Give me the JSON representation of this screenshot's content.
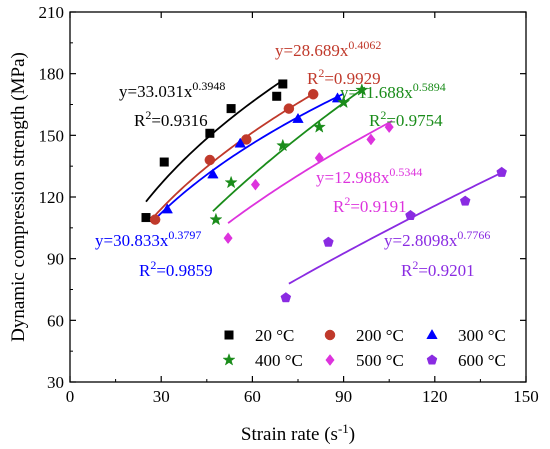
{
  "chart_data": {
    "type": "scatter",
    "xlabel": "Strain rate (s",
    "xlabel_sup": "-1",
    "xlabel_tail": ")",
    "ylabel": "Dynamic compression strength (MPa)",
    "xlim": [
      0,
      150
    ],
    "ylim": [
      30,
      210
    ],
    "xticks": [
      0,
      30,
      60,
      90,
      120,
      150
    ],
    "yticks": [
      30,
      60,
      90,
      120,
      150,
      180,
      210
    ],
    "grid": false,
    "legend_position": "bottom-right",
    "series": [
      {
        "name": "20 °C",
        "color": "#000000",
        "marker": "square",
        "points": [
          [
            25,
            110
          ],
          [
            31,
            137
          ],
          [
            46,
            151
          ],
          [
            53,
            163
          ],
          [
            68,
            169
          ],
          [
            70,
            175
          ]
        ],
        "fit": {
          "a": 33.031,
          "b": 0.3948,
          "range": [
            25,
            70
          ],
          "eq_coef": "y=33.031x",
          "eq_exp": "0.3948",
          "r2_prefix": "R",
          "r2_sup": "2",
          "r2_value": "=0.9316"
        }
      },
      {
        "name": "200 °C",
        "color": "#c0392b",
        "marker": "circle",
        "points": [
          [
            28,
            109
          ],
          [
            46,
            138
          ],
          [
            58,
            148
          ],
          [
            72,
            163
          ],
          [
            80,
            170
          ]
        ],
        "fit": {
          "a": 28.689,
          "b": 0.4062,
          "range": [
            28,
            80
          ],
          "eq_coef": "y=28.689x",
          "eq_exp": "0.4062",
          "r2_prefix": "R",
          "r2_sup": "2",
          "r2_value": "=0.9929"
        }
      },
      {
        "name": "300 °C",
        "color": "#0000ff",
        "marker": "triangle",
        "points": [
          [
            32,
            114
          ],
          [
            47,
            131
          ],
          [
            56,
            146
          ],
          [
            75,
            158
          ],
          [
            88,
            168
          ]
        ],
        "fit": {
          "a": 30.833,
          "b": 0.3797,
          "range": [
            28,
            90
          ],
          "eq_coef": "y=30.833x",
          "eq_exp": "0.3797",
          "r2_prefix": "R",
          "r2_sup": "2",
          "r2_value": "=0.9859"
        }
      },
      {
        "name": "400 °C",
        "color": "#1a8c1a",
        "marker": "star",
        "points": [
          [
            48,
            109
          ],
          [
            53,
            127
          ],
          [
            70,
            145
          ],
          [
            82,
            154
          ],
          [
            90,
            166
          ],
          [
            96,
            172
          ]
        ],
        "fit": {
          "a": 11.688,
          "b": 0.5894,
          "range": [
            47,
            97
          ],
          "eq_coef": "y=11.688x",
          "eq_exp": "0.5894",
          "r2_prefix": "R",
          "r2_sup": "2",
          "r2_value": "=0.9754"
        }
      },
      {
        "name": "500 °C",
        "color": "#dd33dd",
        "marker": "diamond",
        "points": [
          [
            52,
            100
          ],
          [
            61,
            126
          ],
          [
            82,
            139
          ],
          [
            99,
            148
          ],
          [
            105,
            154
          ]
        ],
        "fit": {
          "a": 12.988,
          "b": 0.5344,
          "range": [
            52,
            106
          ],
          "eq_coef": "y=12.988x",
          "eq_exp": "0.5344",
          "r2_prefix": "R",
          "r2_sup": "2",
          "r2_value": "=0.9191"
        }
      },
      {
        "name": "600 °C",
        "color": "#8a2be2",
        "marker": "pentagon",
        "points": [
          [
            71,
            71
          ],
          [
            85,
            98
          ],
          [
            112,
            111
          ],
          [
            130,
            118
          ],
          [
            142,
            132
          ]
        ],
        "fit": {
          "a": 2.8098,
          "b": 0.7766,
          "range": [
            72,
            143
          ],
          "eq_coef": "y=2.8098x",
          "eq_exp": "0.7766",
          "r2_prefix": "R",
          "r2_sup": "2",
          "r2_value": "=0.9201"
        }
      }
    ]
  }
}
